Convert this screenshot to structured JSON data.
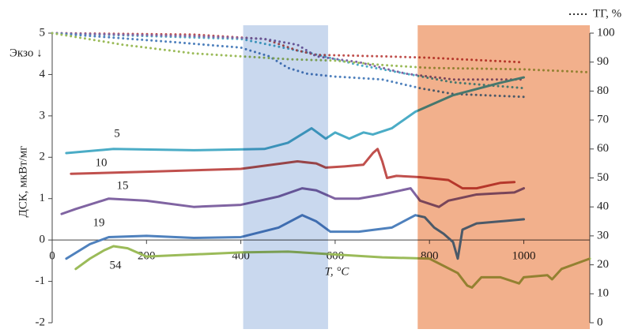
{
  "chart_data": {
    "type": "line",
    "y_label": "ДСК, мкВт/мг",
    "exo_label": "Экзо ↓",
    "x_label": "T, °C",
    "tg_legend": "ТГ, %",
    "xlim": [
      0,
      1140
    ],
    "xticks": [
      0,
      200,
      400,
      600,
      800,
      1000
    ],
    "ylim": [
      -2,
      5
    ],
    "yticks": [
      -2,
      -1,
      0,
      1,
      2,
      3,
      4,
      5
    ],
    "y2lim": [
      0,
      100
    ],
    "y2ticks": [
      0,
      10,
      20,
      30,
      40,
      50,
      60,
      70,
      80,
      90,
      100
    ],
    "regions": [
      {
        "range": [
          405,
          585
        ],
        "color": "#c9d8ee"
      },
      {
        "range": [
          775,
          1140
        ],
        "color": "#f2b08c"
      }
    ],
    "series": [
      {
        "name": "5",
        "color": "#4bacc6",
        "x": [
          30,
          130,
          300,
          450,
          500,
          550,
          580,
          600,
          630,
          660,
          680,
          720,
          770,
          850,
          950,
          1000
        ],
        "values": [
          2.1,
          2.2,
          2.17,
          2.2,
          2.35,
          2.7,
          2.45,
          2.6,
          2.45,
          2.6,
          2.55,
          2.7,
          3.1,
          3.5,
          3.8,
          3.93
        ]
      },
      {
        "name": "10",
        "color": "#c0504d",
        "x": [
          40,
          200,
          400,
          520,
          560,
          580,
          620,
          660,
          680,
          690,
          700,
          710,
          730,
          780,
          840,
          870,
          900,
          950,
          980
        ],
        "values": [
          1.6,
          1.65,
          1.72,
          1.9,
          1.85,
          1.75,
          1.78,
          1.82,
          2.1,
          2.2,
          1.9,
          1.5,
          1.55,
          1.52,
          1.45,
          1.25,
          1.25,
          1.38,
          1.4
        ]
      },
      {
        "name": "15",
        "color": "#8064a2",
        "x": [
          20,
          50,
          120,
          200,
          300,
          400,
          480,
          530,
          560,
          600,
          650,
          700,
          760,
          780,
          820,
          840,
          900,
          980,
          1000
        ],
        "values": [
          0.63,
          0.75,
          1.0,
          0.95,
          0.8,
          0.85,
          1.05,
          1.25,
          1.2,
          1.0,
          1.0,
          1.1,
          1.25,
          0.95,
          0.8,
          0.95,
          1.1,
          1.15,
          1.25
        ]
      },
      {
        "name": "19",
        "color": "#4f81bd",
        "x": [
          30,
          80,
          120,
          200,
          300,
          400,
          480,
          530,
          560,
          590,
          650,
          720,
          770,
          790,
          810,
          830,
          850,
          860,
          870,
          900,
          1000
        ],
        "values": [
          -0.45,
          -0.1,
          0.07,
          0.1,
          0.05,
          0.07,
          0.3,
          0.6,
          0.45,
          0.2,
          0.2,
          0.3,
          0.6,
          0.55,
          0.3,
          0.15,
          -0.05,
          -0.45,
          0.25,
          0.4,
          0.5
        ]
      },
      {
        "name": "54",
        "color": "#9bbb59",
        "x": [
          50,
          80,
          110,
          130,
          160,
          200,
          400,
          500,
          600,
          700,
          800,
          860,
          880,
          890,
          910,
          950,
          990,
          1000,
          1050,
          1060,
          1080,
          1140
        ],
        "values": [
          -0.7,
          -0.45,
          -0.25,
          -0.15,
          -0.2,
          -0.4,
          -0.3,
          -0.28,
          -0.35,
          -0.42,
          -0.45,
          -0.8,
          -1.1,
          -1.15,
          -0.9,
          -0.9,
          -1.05,
          -0.9,
          -0.85,
          -0.95,
          -0.7,
          -0.45
        ]
      }
    ],
    "tg_series": [
      {
        "color": "#4bacc6",
        "axis": "y2",
        "x": [
          0,
          400,
          550,
          650,
          750,
          850,
          1000
        ],
        "values": [
          100,
          98,
          93,
          89,
          86,
          83,
          81
        ]
      },
      {
        "color": "#c0504d",
        "axis": "y2",
        "x": [
          0,
          300,
          450,
          520,
          560,
          700,
          800,
          990
        ],
        "values": [
          100,
          99.5,
          98,
          94,
          92.5,
          92,
          91.5,
          90
        ]
      },
      {
        "color": "#8064a2",
        "axis": "y2",
        "x": [
          0,
          300,
          450,
          520,
          560,
          650,
          750,
          850,
          1000
        ],
        "values": [
          100,
          99,
          98,
          96,
          92,
          90,
          86,
          84,
          84
        ]
      },
      {
        "color": "#4f81bd",
        "axis": "y2",
        "x": [
          0,
          250,
          400,
          460,
          500,
          540,
          600,
          700,
          780,
          850,
          1000
        ],
        "values": [
          100,
          97,
          95,
          92,
          88,
          86,
          85,
          84,
          81,
          79,
          78
        ]
      },
      {
        "color": "#9bbb59",
        "axis": "y2",
        "x": [
          0,
          150,
          300,
          500,
          600,
          700,
          800,
          1000,
          1140
        ],
        "values": [
          100,
          96,
          93,
          91,
          90.5,
          89,
          88,
          87.5,
          86.5
        ]
      }
    ]
  }
}
